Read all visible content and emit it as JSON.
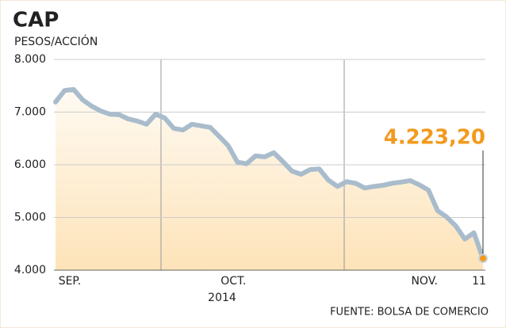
{
  "chart_data": {
    "type": "line",
    "title": "CAP",
    "subtitle": "PESOS/ACCIÓN",
    "categories": [
      null,
      null,
      "SEP.",
      null,
      null,
      null,
      null,
      null,
      null,
      null,
      null,
      null,
      null,
      null,
      null,
      null,
      null,
      null,
      null,
      null,
      "OCT.",
      null,
      null,
      null,
      null,
      null,
      null,
      null,
      null,
      null,
      null,
      null,
      null,
      null,
      null,
      null,
      null,
      null,
      null,
      null,
      null,
      "NOV.",
      null,
      null,
      null,
      null,
      null,
      "11"
    ],
    "x_sublabel": "2014",
    "values": [
      7190,
      7410,
      7430,
      7230,
      7110,
      7020,
      6960,
      6950,
      6870,
      6830,
      6770,
      6960,
      6890,
      6690,
      6660,
      6770,
      6740,
      6710,
      6540,
      6360,
      6050,
      6020,
      6170,
      6150,
      6230,
      6060,
      5880,
      5820,
      5910,
      5920,
      5710,
      5590,
      5680,
      5650,
      5560,
      5590,
      5610,
      5650,
      5670,
      5700,
      5620,
      5520,
      5130,
      5010,
      4840,
      4590,
      4710,
      4223.2
    ],
    "value_labels": [
      null,
      null,
      null,
      null,
      null,
      null,
      null,
      null,
      null,
      null,
      null,
      null,
      null,
      null,
      null,
      null,
      null,
      null,
      null,
      null,
      null,
      null,
      null,
      null,
      null,
      null,
      null,
      null,
      null,
      null,
      null,
      null,
      null,
      null,
      null,
      null,
      null,
      null,
      null,
      null,
      null,
      null,
      null,
      null,
      null,
      null,
      null,
      "4.223,20"
    ],
    "color": "#a9bccc",
    "highlight_color": "#f39a1e",
    "ylim": [
      4000,
      8000
    ],
    "yticks": [
      {
        "value": 4000,
        "label": "4.000"
      },
      {
        "value": 5000,
        "label": "5.000"
      },
      {
        "value": 6000,
        "label": "6.000"
      },
      {
        "value": 7000,
        "label": "7.000"
      },
      {
        "value": 8000,
        "label": "8.000"
      }
    ],
    "grid": true,
    "source": "FUENTE: BOLSA DE COMERCIO"
  }
}
